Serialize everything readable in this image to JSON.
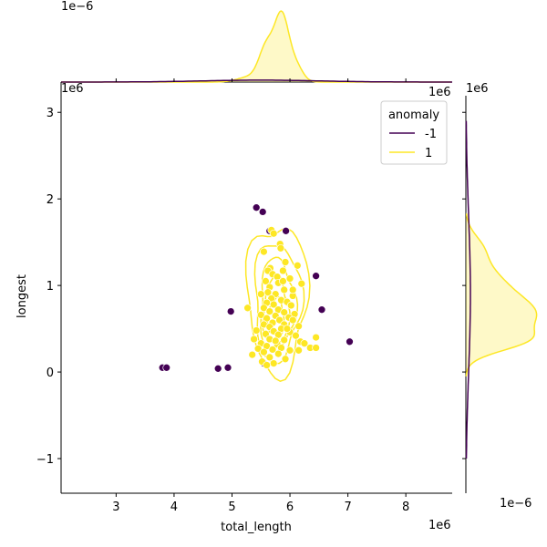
{
  "chart_data": {
    "type": "scatter",
    "subtype": "jointplot",
    "xlabel": "total_length",
    "ylabel": "longest",
    "x_offset_label": "1e6",
    "y_offset_label": "1e6",
    "top_marginal_offset_label": "1e−6",
    "right_marginal_offset_label": "1e−6",
    "right_marginal_top_label": "1e6",
    "xlim": [
      2.05,
      8.8
    ],
    "ylim": [
      -1.4,
      3.35
    ],
    "x_ticks": [
      3,
      4,
      5,
      6,
      7,
      8
    ],
    "y_ticks": [
      -1,
      0,
      1,
      2,
      3
    ],
    "y_tick_labels": [
      "−1",
      "0",
      "1",
      "2",
      "3"
    ],
    "legend": {
      "title": "anomaly",
      "placement": "top-right",
      "entries": [
        {
          "label": "-1",
          "color": "#440154"
        },
        {
          "label": "1",
          "color": "#fde725"
        }
      ]
    },
    "series": [
      {
        "name": "-1",
        "color": "#440154",
        "points": [
          [
            5.42,
            1.9
          ],
          [
            5.53,
            1.85
          ],
          [
            5.65,
            1.63
          ],
          [
            5.93,
            1.63
          ],
          [
            6.45,
            1.11
          ],
          [
            6.55,
            0.72
          ],
          [
            4.98,
            0.7
          ],
          [
            7.03,
            0.35
          ],
          [
            3.8,
            0.05
          ],
          [
            3.87,
            0.05
          ],
          [
            4.76,
            0.04
          ],
          [
            4.93,
            0.05
          ],
          [
            5.55,
            0.1
          ]
        ]
      },
      {
        "name": "1",
        "color": "#fde725",
        "points": [
          [
            5.68,
            1.64
          ],
          [
            5.72,
            1.6
          ],
          [
            5.83,
            1.48
          ],
          [
            5.84,
            1.43
          ],
          [
            5.55,
            1.39
          ],
          [
            6.13,
            1.23
          ],
          [
            5.92,
            1.27
          ],
          [
            5.66,
            1.2
          ],
          [
            5.62,
            1.17
          ],
          [
            5.88,
            1.17
          ],
          [
            5.7,
            1.13
          ],
          [
            5.78,
            1.1
          ],
          [
            6.0,
            1.08
          ],
          [
            5.58,
            1.05
          ],
          [
            5.8,
            1.03
          ],
          [
            6.2,
            1.02
          ],
          [
            5.65,
            0.98
          ],
          [
            5.9,
            0.95
          ],
          [
            5.62,
            0.92
          ],
          [
            5.75,
            0.9
          ],
          [
            6.05,
            0.88
          ],
          [
            5.68,
            0.85
          ],
          [
            5.85,
            0.83
          ],
          [
            5.95,
            0.81
          ],
          [
            5.6,
            0.8
          ],
          [
            5.72,
            0.78
          ],
          [
            6.02,
            0.77
          ],
          [
            5.27,
            0.74
          ],
          [
            5.55,
            0.74
          ],
          [
            5.8,
            0.72
          ],
          [
            5.65,
            0.7
          ],
          [
            5.9,
            0.69
          ],
          [
            6.08,
            0.67
          ],
          [
            5.5,
            0.66
          ],
          [
            5.75,
            0.65
          ],
          [
            5.98,
            0.63
          ],
          [
            5.6,
            0.62
          ],
          [
            5.82,
            0.6
          ],
          [
            6.05,
            0.6
          ],
          [
            5.7,
            0.57
          ],
          [
            5.9,
            0.55
          ],
          [
            5.55,
            0.55
          ],
          [
            6.15,
            0.53
          ],
          [
            5.65,
            0.52
          ],
          [
            5.85,
            0.5
          ],
          [
            5.42,
            0.48
          ],
          [
            5.72,
            0.47
          ],
          [
            6.0,
            0.46
          ],
          [
            5.58,
            0.44
          ],
          [
            5.8,
            0.43
          ],
          [
            6.1,
            0.42
          ],
          [
            5.38,
            0.38
          ],
          [
            5.65,
            0.38
          ],
          [
            5.9,
            0.37
          ],
          [
            6.18,
            0.35
          ],
          [
            5.5,
            0.33
          ],
          [
            5.78,
            0.32
          ],
          [
            6.25,
            0.33
          ],
          [
            6.45,
            0.4
          ],
          [
            5.6,
            0.3
          ],
          [
            5.85,
            0.28
          ],
          [
            6.35,
            0.28
          ],
          [
            5.45,
            0.27
          ],
          [
            5.7,
            0.26
          ],
          [
            6.0,
            0.25
          ],
          [
            5.55,
            0.23
          ],
          [
            5.8,
            0.21
          ],
          [
            5.35,
            0.2
          ],
          [
            6.15,
            0.25
          ],
          [
            5.65,
            0.17
          ],
          [
            5.92,
            0.15
          ],
          [
            5.52,
            0.12
          ],
          [
            5.72,
            0.1
          ],
          [
            5.6,
            0.08
          ],
          [
            6.45,
            0.28
          ],
          [
            6.05,
            0.95
          ],
          [
            5.88,
            1.05
          ],
          [
            5.5,
            0.9
          ],
          [
            5.95,
            0.5
          ],
          [
            5.75,
            0.36
          ]
        ]
      }
    ]
  }
}
